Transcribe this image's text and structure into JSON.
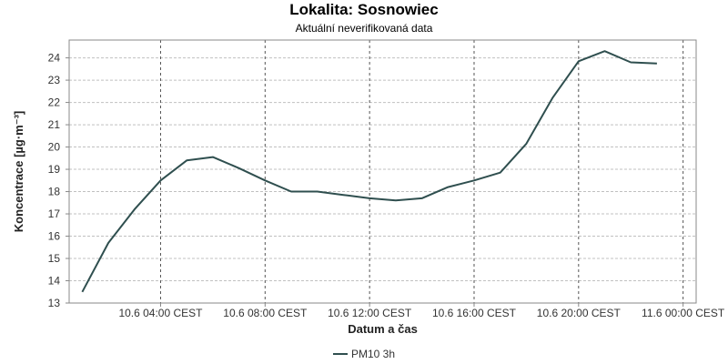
{
  "chart_data": {
    "type": "line",
    "title": "Lokalita: Sosnowiec",
    "subtitle": "Aktuální neverifikovaná data",
    "xlabel": "Datum a čas",
    "ylabel": "Koncentrace [µg·m⁻³]",
    "ylim": [
      13,
      24.8
    ],
    "yticks": [
      "13",
      "14",
      "15",
      "16",
      "17",
      "18",
      "19",
      "20",
      "21",
      "22",
      "23",
      "24"
    ],
    "xlim": [
      "2024-06-10 00:30",
      "2024-06-11 00:30"
    ],
    "xticks": [
      {
        "label": "10.6 04:00 CEST",
        "value": "2024-06-10 04:00"
      },
      {
        "label": "10.6 08:00 CEST",
        "value": "2024-06-10 08:00"
      },
      {
        "label": "10.6 12:00 CEST",
        "value": "2024-06-10 12:00"
      },
      {
        "label": "10.6 16:00 CEST",
        "value": "2024-06-10 16:00"
      },
      {
        "label": "10.6 20:00 CEST",
        "value": "2024-06-10 20:00"
      },
      {
        "label": "11.6 00:00 CEST",
        "value": "2024-06-11 00:00"
      }
    ],
    "grid": true,
    "legend_position": "bottom",
    "series": [
      {
        "name": "PM10 3h",
        "color": "#2f4f4f",
        "x": [
          "2024-06-10 01:00",
          "2024-06-10 02:00",
          "2024-06-10 03:00",
          "2024-06-10 04:00",
          "2024-06-10 05:00",
          "2024-06-10 06:00",
          "2024-06-10 07:00",
          "2024-06-10 08:00",
          "2024-06-10 09:00",
          "2024-06-10 10:00",
          "2024-06-10 11:00",
          "2024-06-10 12:00",
          "2024-06-10 13:00",
          "2024-06-10 14:00",
          "2024-06-10 15:00",
          "2024-06-10 16:00",
          "2024-06-10 17:00",
          "2024-06-10 18:00",
          "2024-06-10 19:00",
          "2024-06-10 20:00",
          "2024-06-10 21:00",
          "2024-06-10 22:00",
          "2024-06-10 23:00"
        ],
        "y": [
          13.5,
          15.7,
          17.2,
          18.5,
          19.4,
          19.55,
          19.05,
          18.5,
          18.0,
          18.0,
          17.85,
          17.7,
          17.6,
          17.7,
          18.2,
          18.5,
          18.85,
          20.15,
          22.2,
          23.85,
          24.3,
          23.8,
          23.75
        ]
      }
    ]
  },
  "colors": {
    "line": "#2f4f4f",
    "grid": "#c0c0c0",
    "axis": "#888888"
  }
}
